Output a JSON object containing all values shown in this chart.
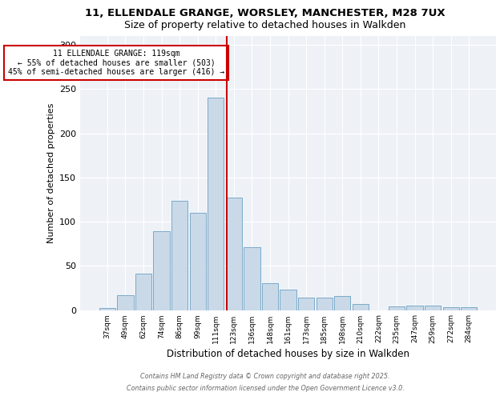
{
  "title_line1": "11, ELLENDALE GRANGE, WORSLEY, MANCHESTER, M28 7UX",
  "title_line2": "Size of property relative to detached houses in Walkden",
  "xlabel": "Distribution of detached houses by size in Walkden",
  "ylabel": "Number of detached properties",
  "categories": [
    "37sqm",
    "49sqm",
    "62sqm",
    "74sqm",
    "86sqm",
    "99sqm",
    "111sqm",
    "123sqm",
    "136sqm",
    "148sqm",
    "161sqm",
    "173sqm",
    "185sqm",
    "198sqm",
    "210sqm",
    "222sqm",
    "235sqm",
    "247sqm",
    "259sqm",
    "272sqm",
    "284sqm"
  ],
  "values": [
    2,
    17,
    41,
    89,
    124,
    110,
    240,
    127,
    71,
    30,
    23,
    14,
    14,
    16,
    7,
    0,
    4,
    5,
    5,
    3,
    3
  ],
  "bar_color": "#c9d9e8",
  "bar_edge_color": "#7aaac8",
  "vline_color": "#cc0000",
  "annotation_text": "11 ELLENDALE GRANGE: 119sqm\n← 55% of detached houses are smaller (503)\n45% of semi-detached houses are larger (416) →",
  "annotation_box_color": "white",
  "annotation_box_edge_color": "#cc0000",
  "ylim": [
    0,
    310
  ],
  "yticks": [
    0,
    50,
    100,
    150,
    200,
    250,
    300
  ],
  "footer_line1": "Contains HM Land Registry data © Crown copyright and database right 2025.",
  "footer_line2": "Contains public sector information licensed under the Open Government Licence v3.0.",
  "background_color": "#eef2f7"
}
